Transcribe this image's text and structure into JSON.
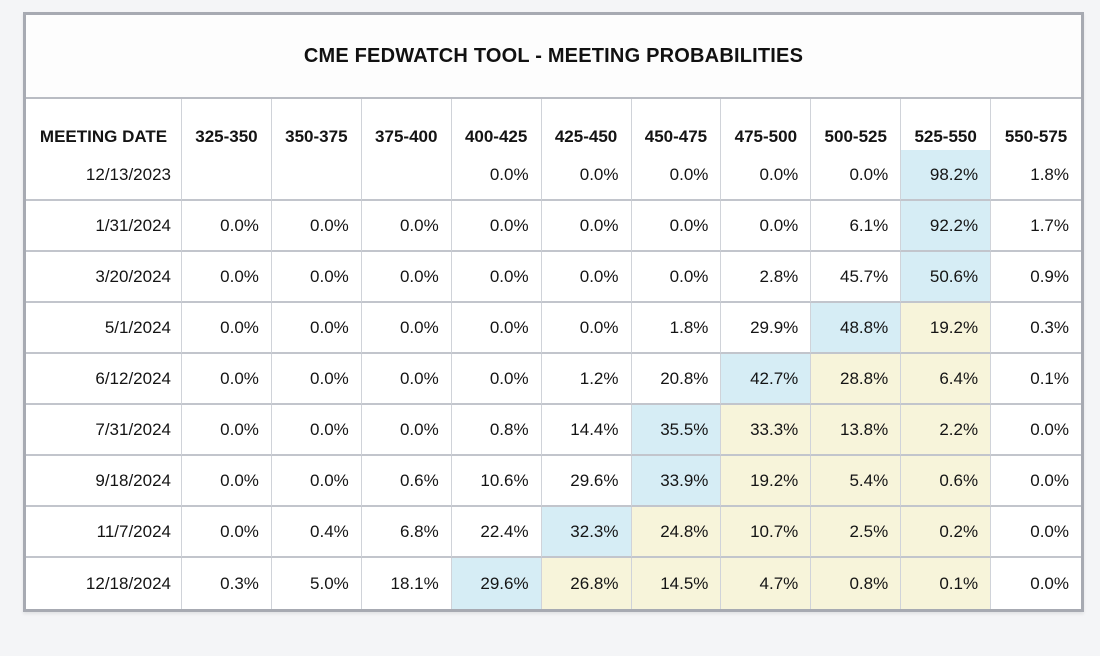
{
  "page": {
    "background_color": "#f4f5f7"
  },
  "colors": {
    "highlight_blue": "#d6edf5",
    "highlight_yellow": "#f7f4da",
    "table_border": "#a7aab2",
    "text": "#141414"
  },
  "chart_data": {
    "type": "table",
    "title": "CME FEDWATCH TOOL - MEETING PROBABILITIES",
    "columns": [
      "MEETING DATE",
      "325-350",
      "350-375",
      "375-400",
      "400-425",
      "425-450",
      "450-475",
      "475-500",
      "500-525",
      "525-550",
      "550-575"
    ],
    "rows": [
      {
        "meeting_date": "12/13/2023",
        "values": [
          "",
          "",
          "",
          "0.0%",
          "0.0%",
          "0.0%",
          "0.0%",
          "0.0%",
          "98.2%",
          "1.8%"
        ],
        "highlights": [
          "",
          "",
          "",
          "",
          "",
          "",
          "",
          "",
          "blue",
          ""
        ]
      },
      {
        "meeting_date": "1/31/2024",
        "values": [
          "0.0%",
          "0.0%",
          "0.0%",
          "0.0%",
          "0.0%",
          "0.0%",
          "0.0%",
          "6.1%",
          "92.2%",
          "1.7%"
        ],
        "highlights": [
          "",
          "",
          "",
          "",
          "",
          "",
          "",
          "",
          "blue",
          ""
        ]
      },
      {
        "meeting_date": "3/20/2024",
        "values": [
          "0.0%",
          "0.0%",
          "0.0%",
          "0.0%",
          "0.0%",
          "0.0%",
          "2.8%",
          "45.7%",
          "50.6%",
          "0.9%"
        ],
        "highlights": [
          "",
          "",
          "",
          "",
          "",
          "",
          "",
          "",
          "blue",
          ""
        ]
      },
      {
        "meeting_date": "5/1/2024",
        "values": [
          "0.0%",
          "0.0%",
          "0.0%",
          "0.0%",
          "0.0%",
          "1.8%",
          "29.9%",
          "48.8%",
          "19.2%",
          "0.3%"
        ],
        "highlights": [
          "",
          "",
          "",
          "",
          "",
          "",
          "",
          "blue",
          "yellow",
          ""
        ]
      },
      {
        "meeting_date": "6/12/2024",
        "values": [
          "0.0%",
          "0.0%",
          "0.0%",
          "0.0%",
          "1.2%",
          "20.8%",
          "42.7%",
          "28.8%",
          "6.4%",
          "0.1%"
        ],
        "highlights": [
          "",
          "",
          "",
          "",
          "",
          "",
          "blue",
          "yellow",
          "yellow",
          ""
        ]
      },
      {
        "meeting_date": "7/31/2024",
        "values": [
          "0.0%",
          "0.0%",
          "0.0%",
          "0.8%",
          "14.4%",
          "35.5%",
          "33.3%",
          "13.8%",
          "2.2%",
          "0.0%"
        ],
        "highlights": [
          "",
          "",
          "",
          "",
          "",
          "blue",
          "yellow",
          "yellow",
          "yellow",
          ""
        ]
      },
      {
        "meeting_date": "9/18/2024",
        "values": [
          "0.0%",
          "0.0%",
          "0.6%",
          "10.6%",
          "29.6%",
          "33.9%",
          "19.2%",
          "5.4%",
          "0.6%",
          "0.0%"
        ],
        "highlights": [
          "",
          "",
          "",
          "",
          "",
          "blue",
          "yellow",
          "yellow",
          "yellow",
          ""
        ]
      },
      {
        "meeting_date": "11/7/2024",
        "values": [
          "0.0%",
          "0.4%",
          "6.8%",
          "22.4%",
          "32.3%",
          "24.8%",
          "10.7%",
          "2.5%",
          "0.2%",
          "0.0%"
        ],
        "highlights": [
          "",
          "",
          "",
          "",
          "blue",
          "yellow",
          "yellow",
          "yellow",
          "yellow",
          ""
        ]
      },
      {
        "meeting_date": "12/18/2024",
        "values": [
          "0.3%",
          "5.0%",
          "18.1%",
          "29.6%",
          "26.8%",
          "14.5%",
          "4.7%",
          "0.8%",
          "0.1%",
          "0.0%"
        ],
        "highlights": [
          "",
          "",
          "",
          "blue",
          "yellow",
          "yellow",
          "yellow",
          "yellow",
          "yellow",
          ""
        ]
      }
    ]
  }
}
